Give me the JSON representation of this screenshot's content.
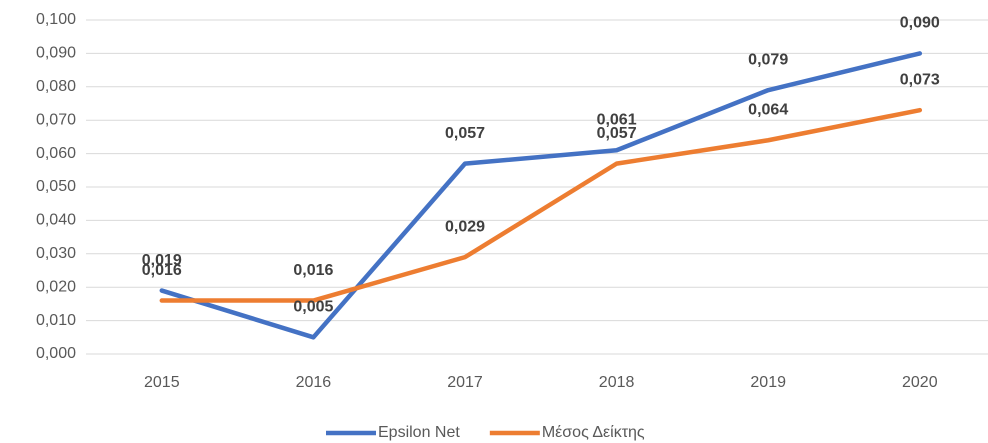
{
  "chart_data": {
    "type": "line",
    "categories": [
      "2015",
      "2016",
      "2017",
      "2018",
      "2019",
      "2020"
    ],
    "series": [
      {
        "name": "Epsilon Net",
        "color": "#4472c4",
        "values": [
          0.019,
          0.005,
          0.057,
          0.061,
          0.079,
          0.09
        ],
        "value_labels": [
          "0,019",
          "0,005",
          "0,057",
          "0,061",
          "0,079",
          "0,090"
        ]
      },
      {
        "name": "Μέσος Δείκτης",
        "color": "#ed7d31",
        "values": [
          0.016,
          0.016,
          0.029,
          0.057,
          0.064,
          0.073
        ],
        "value_labels": [
          "0,016",
          "0,016",
          "0,029",
          "0,057",
          "0,064",
          "0,073"
        ]
      }
    ],
    "ylim": [
      0,
      0.1
    ],
    "yticks": [
      {
        "value": 0,
        "label": "0,000"
      },
      {
        "value": 0.01,
        "label": "0,010"
      },
      {
        "value": 0.02,
        "label": "0,020"
      },
      {
        "value": 0.03,
        "label": "0,030"
      },
      {
        "value": 0.04,
        "label": "0,040"
      },
      {
        "value": 0.05,
        "label": "0,050"
      },
      {
        "value": 0.06,
        "label": "0,060"
      },
      {
        "value": 0.07,
        "label": "0,070"
      },
      {
        "value": 0.08,
        "label": "0,080"
      },
      {
        "value": 0.09,
        "label": "0,090"
      },
      {
        "value": 0.1,
        "label": "0,100"
      }
    ],
    "grid": true,
    "legend": "bottom"
  }
}
